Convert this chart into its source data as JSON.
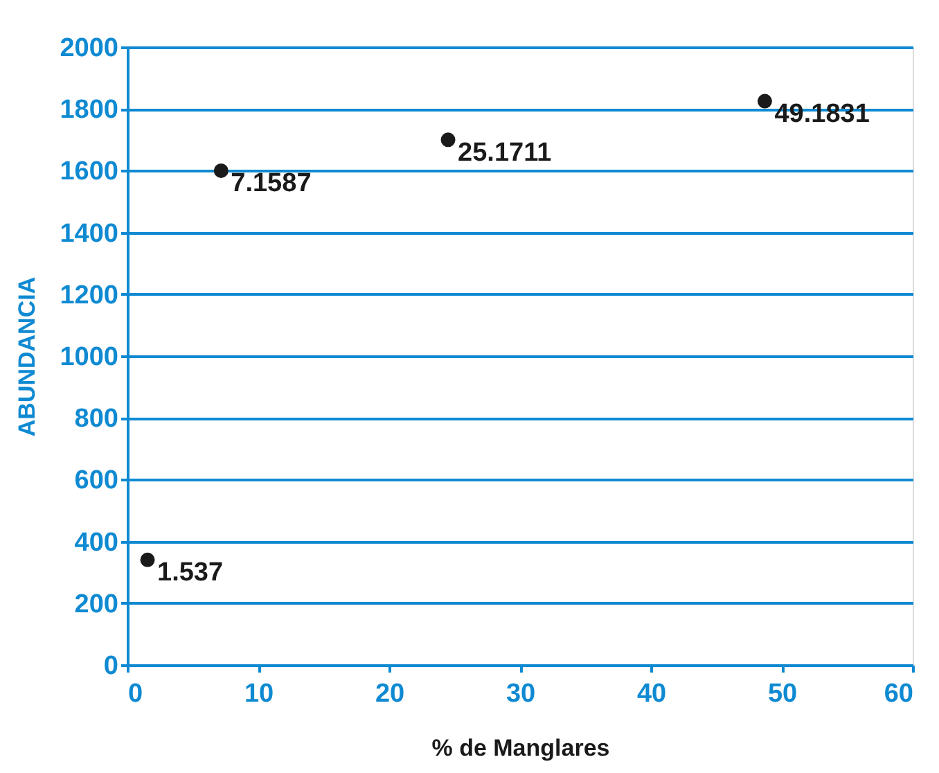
{
  "chart_data": {
    "type": "scatter",
    "xlabel": "% de Manglares",
    "ylabel": "ABUNDANCIA",
    "x": [
      1.537,
      7.1587,
      24.5,
      48.7
    ],
    "values": [
      340,
      1600,
      1700,
      1825
    ],
    "color": "#1a1a1a",
    "marker": "circle",
    "xlim": [
      0,
      60
    ],
    "xticks": [
      0,
      10,
      20,
      30,
      40,
      50,
      60
    ],
    "ylim": [
      0,
      2000
    ],
    "yticks": [
      0,
      200,
      400,
      600,
      800,
      1000,
      1200,
      1400,
      1600,
      1800,
      2000
    ],
    "grid": "y",
    "annotations": [
      {
        "text": "1.537",
        "x": 1.537,
        "y": 340
      },
      {
        "text": "7.1587",
        "x": 7.1587,
        "y": 1600
      },
      {
        "text": "25.1711",
        "x": 24.5,
        "y": 1700
      },
      {
        "text": "49.1831",
        "x": 48.7,
        "y": 1825
      }
    ]
  }
}
